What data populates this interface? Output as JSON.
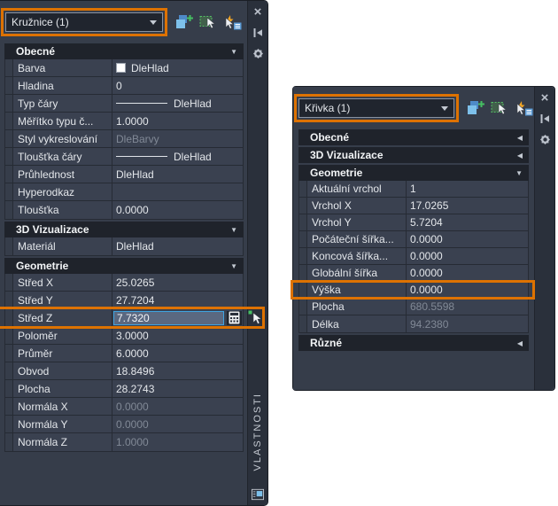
{
  "colors": {
    "highlight_orange": "#DD7200",
    "input_selection_border": "#3FA3E0",
    "panel_background": "#3A4150",
    "readonly_text": "#818996"
  },
  "icons": {
    "expanded": "▼",
    "collapsed": "◀",
    "close": "×"
  },
  "panels": {
    "left": {
      "selector": "Kružnice (1)",
      "title": "VLASTNOSTI",
      "sections": [
        {
          "label": "Obecné",
          "collapsed": false,
          "rows": [
            {
              "label": "Barva",
              "value": "DleHlad",
              "swatch": true
            },
            {
              "label": "Hladina",
              "value": "0"
            },
            {
              "label": "Typ čáry",
              "value": "DleHlad",
              "line": true
            },
            {
              "label": "Měřítko typu č...",
              "value": "1.0000"
            },
            {
              "label": "Styl vykreslování",
              "value": "DleBarvy",
              "readonly": true
            },
            {
              "label": "Tloušťka čáry",
              "value": "DleHlad",
              "line": true
            },
            {
              "label": "Průhlednost",
              "value": "DleHlad"
            },
            {
              "label": "Hyperodkaz",
              "value": ""
            },
            {
              "label": "Tloušťka",
              "value": "0.0000"
            }
          ]
        },
        {
          "label": "3D Vizualizace",
          "collapsed": false,
          "rows": [
            {
              "label": "Materiál",
              "value": "DleHlad"
            }
          ]
        },
        {
          "label": "Geometrie",
          "collapsed": false,
          "rows": [
            {
              "label": "Střed X",
              "value": "25.0265"
            },
            {
              "label": "Střed Y",
              "value": "27.7204"
            },
            {
              "label": "Střed Z",
              "value": "7.7320",
              "editing": true,
              "highlight": true
            },
            {
              "label": "Poloměr",
              "value": "3.0000"
            },
            {
              "label": "Průměr",
              "value": "6.0000"
            },
            {
              "label": "Obvod",
              "value": "18.8496"
            },
            {
              "label": "Plocha",
              "value": "28.2743"
            },
            {
              "label": "Normála X",
              "value": "0.0000",
              "readonly": true
            },
            {
              "label": "Normála Y",
              "value": "0.0000",
              "readonly": true
            },
            {
              "label": "Normála Z",
              "value": "1.0000",
              "readonly": true
            }
          ]
        }
      ]
    },
    "right": {
      "selector": "Křivka (1)",
      "title": "",
      "sections": [
        {
          "label": "Obecné",
          "collapsed": true
        },
        {
          "label": "3D Vizualizace",
          "collapsed": true
        },
        {
          "label": "Geometrie",
          "collapsed": false,
          "rows": [
            {
              "label": "Aktuální vrchol",
              "value": "1"
            },
            {
              "label": "Vrchol X",
              "value": "17.0265"
            },
            {
              "label": "Vrchol Y",
              "value": "5.7204"
            },
            {
              "label": "Počáteční šířka...",
              "value": "0.0000"
            },
            {
              "label": "Koncová šířka...",
              "value": "0.0000"
            },
            {
              "label": "Globální šířka",
              "value": "0.0000"
            },
            {
              "label": "Výška",
              "value": "0.0000",
              "highlight": true
            },
            {
              "label": "Plocha",
              "value": "680.5598",
              "readonly": true
            },
            {
              "label": "Délka",
              "value": "94.2380",
              "readonly": true
            }
          ]
        },
        {
          "label": "Různé",
          "collapsed": true
        }
      ]
    }
  }
}
